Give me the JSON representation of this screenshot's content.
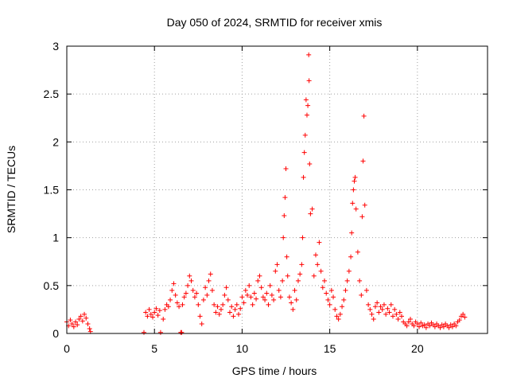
{
  "chart_data": {
    "type": "scatter",
    "title": "Day 050 of 2024, SRMTID for receiver xmis",
    "xlabel": "GPS time / hours",
    "ylabel": "SRMTID / TECUs",
    "xlim": [
      0,
      24
    ],
    "ylim": [
      0,
      3
    ],
    "x_ticks": [
      0,
      5,
      10,
      15,
      20
    ],
    "x_tick_labels": [
      "0",
      "5",
      "10",
      "15",
      "20"
    ],
    "y_ticks": [
      0,
      0.5,
      1,
      1.5,
      2,
      2.5,
      3
    ],
    "y_tick_labels": [
      "0",
      "0.5",
      "1",
      "1.5",
      "2",
      "2.5",
      "3"
    ],
    "grid": true,
    "marker": "plus",
    "color": "#ff0000",
    "series": [
      {
        "name": "SRMTID",
        "points": [
          [
            0.0,
            0.12
          ],
          [
            0.1,
            0.08
          ],
          [
            0.2,
            0.14
          ],
          [
            0.3,
            0.1
          ],
          [
            0.4,
            0.07
          ],
          [
            0.5,
            0.12
          ],
          [
            0.6,
            0.09
          ],
          [
            0.7,
            0.15
          ],
          [
            0.8,
            0.18
          ],
          [
            0.9,
            0.13
          ],
          [
            1.0,
            0.2
          ],
          [
            1.1,
            0.16
          ],
          [
            1.2,
            0.1
          ],
          [
            1.3,
            0.05
          ],
          [
            1.35,
            0.02
          ],
          [
            4.4,
            0.01
          ],
          [
            4.5,
            0.22
          ],
          [
            4.6,
            0.18
          ],
          [
            4.7,
            0.25
          ],
          [
            4.8,
            0.2
          ],
          [
            4.9,
            0.17
          ],
          [
            5.0,
            0.22
          ],
          [
            5.1,
            0.26
          ],
          [
            5.2,
            0.19
          ],
          [
            5.3,
            0.24
          ],
          [
            5.35,
            0.01
          ],
          [
            5.5,
            0.15
          ],
          [
            5.6,
            0.25
          ],
          [
            5.7,
            0.3
          ],
          [
            5.8,
            0.28
          ],
          [
            5.9,
            0.35
          ],
          [
            6.0,
            0.45
          ],
          [
            6.1,
            0.52
          ],
          [
            6.2,
            0.4
          ],
          [
            6.3,
            0.32
          ],
          [
            6.4,
            0.28
          ],
          [
            6.5,
            0.01
          ],
          [
            6.55,
            0.01
          ],
          [
            6.6,
            0.3
          ],
          [
            6.7,
            0.38
          ],
          [
            6.8,
            0.42
          ],
          [
            6.9,
            0.5
          ],
          [
            7.0,
            0.6
          ],
          [
            7.1,
            0.55
          ],
          [
            7.2,
            0.45
          ],
          [
            7.3,
            0.38
          ],
          [
            7.4,
            0.42
          ],
          [
            7.5,
            0.3
          ],
          [
            7.6,
            0.18
          ],
          [
            7.7,
            0.1
          ],
          [
            7.8,
            0.35
          ],
          [
            7.9,
            0.48
          ],
          [
            8.0,
            0.4
          ],
          [
            8.1,
            0.55
          ],
          [
            8.2,
            0.62
          ],
          [
            8.3,
            0.45
          ],
          [
            8.4,
            0.3
          ],
          [
            8.5,
            0.22
          ],
          [
            8.6,
            0.28
          ],
          [
            8.7,
            0.2
          ],
          [
            8.8,
            0.25
          ],
          [
            8.9,
            0.3
          ],
          [
            9.0,
            0.4
          ],
          [
            9.1,
            0.48
          ],
          [
            9.2,
            0.35
          ],
          [
            9.3,
            0.22
          ],
          [
            9.4,
            0.28
          ],
          [
            9.5,
            0.18
          ],
          [
            9.6,
            0.25
          ],
          [
            9.7,
            0.3
          ],
          [
            9.8,
            0.2
          ],
          [
            9.9,
            0.26
          ],
          [
            10.0,
            0.38
          ],
          [
            10.1,
            0.32
          ],
          [
            10.2,
            0.45
          ],
          [
            10.3,
            0.4
          ],
          [
            10.4,
            0.5
          ],
          [
            10.5,
            0.38
          ],
          [
            10.6,
            0.3
          ],
          [
            10.7,
            0.42
          ],
          [
            10.8,
            0.36
          ],
          [
            10.9,
            0.55
          ],
          [
            11.0,
            0.6
          ],
          [
            11.1,
            0.48
          ],
          [
            11.2,
            0.38
          ],
          [
            11.3,
            0.35
          ],
          [
            11.4,
            0.42
          ],
          [
            11.5,
            0.3
          ],
          [
            11.6,
            0.5
          ],
          [
            11.7,
            0.4
          ],
          [
            11.8,
            0.35
          ],
          [
            11.9,
            0.65
          ],
          [
            12.0,
            0.72
          ],
          [
            12.1,
            0.45
          ],
          [
            12.2,
            0.38
          ],
          [
            12.3,
            0.55
          ],
          [
            12.35,
            1.0
          ],
          [
            12.4,
            1.23
          ],
          [
            12.45,
            1.42
          ],
          [
            12.5,
            1.72
          ],
          [
            12.55,
            0.8
          ],
          [
            12.6,
            0.6
          ],
          [
            12.7,
            0.38
          ],
          [
            12.8,
            0.32
          ],
          [
            12.9,
            0.25
          ],
          [
            13.0,
            0.45
          ],
          [
            13.1,
            0.35
          ],
          [
            13.2,
            0.55
          ],
          [
            13.3,
            0.62
          ],
          [
            13.4,
            0.72
          ],
          [
            13.45,
            1.0
          ],
          [
            13.5,
            1.63
          ],
          [
            13.55,
            1.89
          ],
          [
            13.6,
            2.07
          ],
          [
            13.65,
            2.44
          ],
          [
            13.7,
            2.28
          ],
          [
            13.75,
            2.38
          ],
          [
            13.8,
            2.91
          ],
          [
            13.82,
            2.64
          ],
          [
            13.85,
            1.77
          ],
          [
            13.9,
            1.25
          ],
          [
            14.0,
            1.3
          ],
          [
            14.1,
            0.6
          ],
          [
            14.2,
            0.82
          ],
          [
            14.3,
            0.72
          ],
          [
            14.4,
            0.95
          ],
          [
            14.5,
            0.65
          ],
          [
            14.6,
            0.48
          ],
          [
            14.7,
            0.55
          ],
          [
            14.8,
            0.42
          ],
          [
            14.9,
            0.35
          ],
          [
            15.0,
            0.3
          ],
          [
            15.1,
            0.45
          ],
          [
            15.2,
            0.38
          ],
          [
            15.3,
            0.25
          ],
          [
            15.4,
            0.18
          ],
          [
            15.5,
            0.15
          ],
          [
            15.6,
            0.2
          ],
          [
            15.7,
            0.28
          ],
          [
            15.8,
            0.35
          ],
          [
            15.9,
            0.45
          ],
          [
            16.0,
            0.55
          ],
          [
            16.1,
            0.65
          ],
          [
            16.2,
            0.8
          ],
          [
            16.25,
            1.05
          ],
          [
            16.3,
            1.36
          ],
          [
            16.35,
            1.5
          ],
          [
            16.4,
            1.59
          ],
          [
            16.45,
            1.63
          ],
          [
            16.5,
            1.3
          ],
          [
            16.6,
            0.85
          ],
          [
            16.7,
            0.55
          ],
          [
            16.8,
            0.4
          ],
          [
            16.85,
            1.22
          ],
          [
            16.9,
            1.8
          ],
          [
            16.95,
            2.27
          ],
          [
            17.0,
            1.34
          ],
          [
            17.1,
            0.45
          ],
          [
            17.2,
            0.3
          ],
          [
            17.3,
            0.25
          ],
          [
            17.4,
            0.2
          ],
          [
            17.5,
            0.15
          ],
          [
            17.6,
            0.28
          ],
          [
            17.7,
            0.32
          ],
          [
            17.8,
            0.22
          ],
          [
            17.9,
            0.28
          ],
          [
            18.0,
            0.25
          ],
          [
            18.1,
            0.3
          ],
          [
            18.2,
            0.2
          ],
          [
            18.3,
            0.26
          ],
          [
            18.4,
            0.22
          ],
          [
            18.5,
            0.3
          ],
          [
            18.6,
            0.18
          ],
          [
            18.7,
            0.25
          ],
          [
            18.8,
            0.2
          ],
          [
            18.9,
            0.15
          ],
          [
            19.0,
            0.22
          ],
          [
            19.1,
            0.18
          ],
          [
            19.2,
            0.12
          ],
          [
            19.3,
            0.1
          ],
          [
            19.4,
            0.08
          ],
          [
            19.5,
            0.12
          ],
          [
            19.6,
            0.15
          ],
          [
            19.7,
            0.1
          ],
          [
            19.8,
            0.08
          ],
          [
            19.9,
            0.12
          ],
          [
            20.0,
            0.1
          ],
          [
            20.1,
            0.07
          ],
          [
            20.2,
            0.11
          ],
          [
            20.3,
            0.08
          ],
          [
            20.4,
            0.09
          ],
          [
            20.5,
            0.06
          ],
          [
            20.6,
            0.1
          ],
          [
            20.7,
            0.08
          ],
          [
            20.8,
            0.11
          ],
          [
            20.9,
            0.09
          ],
          [
            21.0,
            0.07
          ],
          [
            21.1,
            0.1
          ],
          [
            21.2,
            0.08
          ],
          [
            21.3,
            0.06
          ],
          [
            21.4,
            0.09
          ],
          [
            21.5,
            0.07
          ],
          [
            21.6,
            0.1
          ],
          [
            21.7,
            0.08
          ],
          [
            21.8,
            0.06
          ],
          [
            21.9,
            0.09
          ],
          [
            22.0,
            0.07
          ],
          [
            22.1,
            0.1
          ],
          [
            22.2,
            0.08
          ],
          [
            22.3,
            0.12
          ],
          [
            22.4,
            0.14
          ],
          [
            22.5,
            0.18
          ],
          [
            22.6,
            0.2
          ],
          [
            22.7,
            0.17
          ]
        ]
      }
    ]
  }
}
